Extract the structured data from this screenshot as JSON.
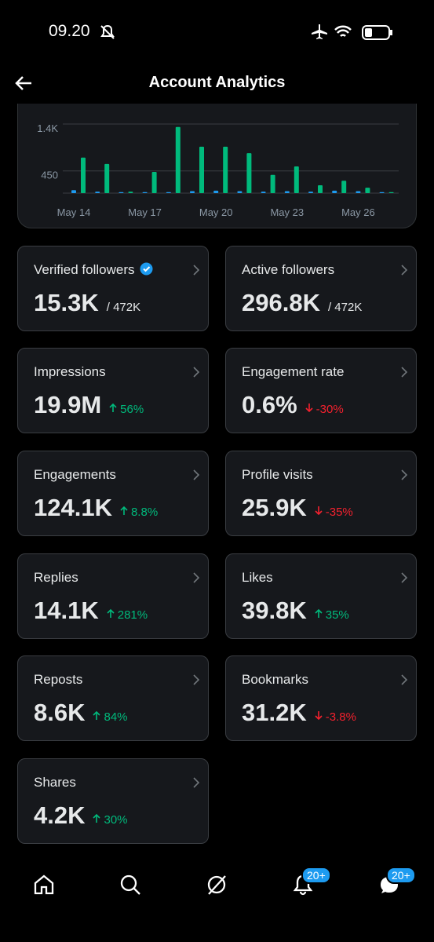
{
  "status_bar": {
    "time": "09.20"
  },
  "header": {
    "title": "Account Analytics"
  },
  "chart_data": {
    "type": "bar",
    "categories": [
      "May 14",
      null,
      null,
      "May 17",
      null,
      null,
      "May 20",
      null,
      null,
      "May 23",
      null,
      null,
      "May 26",
      null
    ],
    "series": [
      {
        "color": "#1d9bf0",
        "values": [
          60,
          30,
          20,
          20,
          20,
          40,
          50,
          40,
          30,
          40,
          30,
          50,
          40,
          20
        ]
      },
      {
        "color": "#00ba7c",
        "values": [
          720,
          590,
          30,
          430,
          1340,
          940,
          940,
          810,
          370,
          540,
          160,
          250,
          110,
          20
        ]
      }
    ],
    "ylim": [
      0,
      1400
    ],
    "yticks": [
      450,
      {
        "value": 1400,
        "label": "1.4K"
      }
    ],
    "grid": true
  },
  "cards": [
    {
      "label": "Verified followers",
      "verified": true,
      "value": "15.3K",
      "total": "/ 472K"
    },
    {
      "label": "Active followers",
      "value": "296.8K",
      "total": "/ 472K"
    },
    {
      "label": "Impressions",
      "value": "19.9M",
      "change": "56%",
      "trend": "up"
    },
    {
      "label": "Engagement rate",
      "value": "0.6%",
      "change": "-30%",
      "trend": "down"
    },
    {
      "label": "Engagements",
      "value": "124.1K",
      "change": "8.8%",
      "trend": "up"
    },
    {
      "label": "Profile visits",
      "value": "25.9K",
      "change": "-35%",
      "trend": "down"
    },
    {
      "label": "Replies",
      "value": "14.1K",
      "change": "281%",
      "trend": "up"
    },
    {
      "label": "Likes",
      "value": "39.8K",
      "change": "35%",
      "trend": "up"
    },
    {
      "label": "Reposts",
      "value": "8.6K",
      "change": "84%",
      "trend": "up"
    },
    {
      "label": "Bookmarks",
      "value": "31.2K",
      "change": "-3.8%",
      "trend": "down"
    },
    {
      "label": "Shares",
      "value": "4.2K",
      "change": "30%",
      "trend": "up"
    }
  ],
  "nav": {
    "notifications_badge": "20+",
    "messages_badge": "20+"
  }
}
